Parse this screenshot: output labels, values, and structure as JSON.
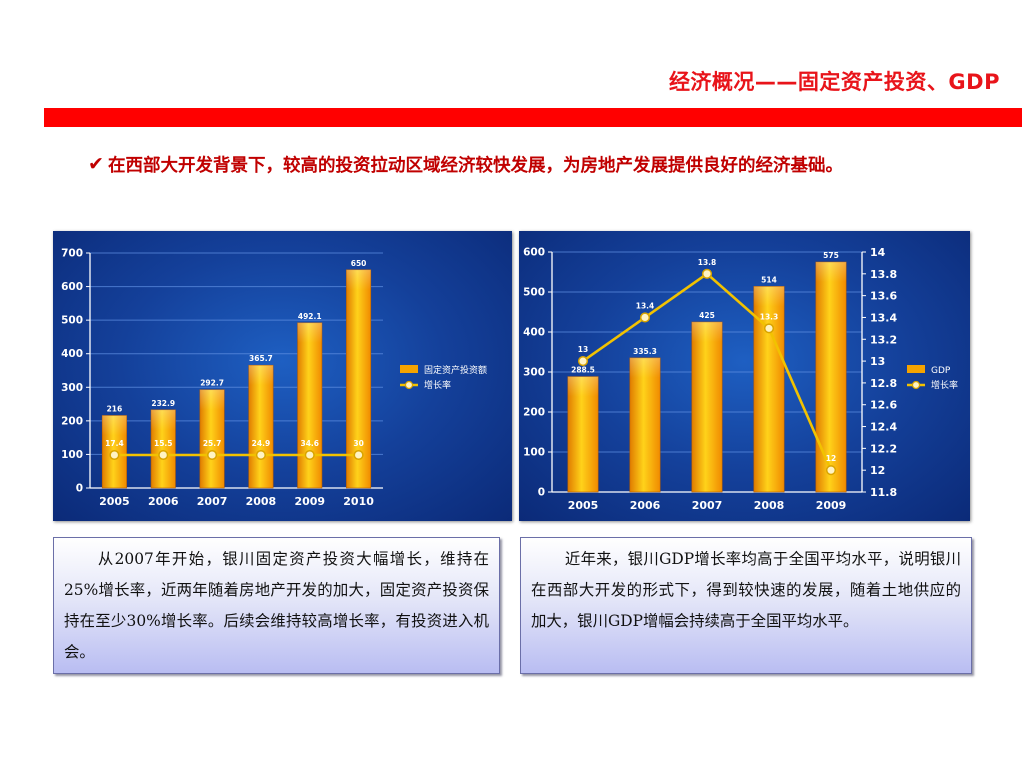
{
  "slide": {
    "title": "经济概况——固定资产投资、GDP",
    "bullet": "在西部大开发背景下，较高的投资拉动区域经济较快发展，为房地产发展提供良好的经济基础。"
  },
  "notes": {
    "left": "从2007年开始，银川固定资产投资大幅增长，维持在25%增长率，近两年随着房地产开发的加大，固定资产投资保持在至少30%增长率。后续会维持较高增长率，有投资进入机会。",
    "right": "近年来，银川GDP增长率均高于全国平均水平，说明银川在西部大开发的形式下，得到较快速的发展，随着土地供应的加大，银川GDP增幅会持续高于全国平均水平。"
  },
  "colors": {
    "title_red": "#e8141a",
    "bar_fill": "#f7a800",
    "line_color": "#f2c200",
    "panel_blue": "#14409a"
  },
  "chart_data": [
    {
      "type": "bar",
      "categories": [
        "2005",
        "2006",
        "2007",
        "2008",
        "2009",
        "2010"
      ],
      "series": [
        {
          "name": "固定资产投资额",
          "type": "bar",
          "values": [
            216,
            232.9,
            292.7,
            365.7,
            492.1,
            650
          ]
        },
        {
          "name": "增长率",
          "type": "line",
          "values": [
            17.4,
            15.5,
            25.7,
            24.9,
            34.6,
            30
          ]
        }
      ],
      "ylim": [
        0,
        700
      ],
      "yticks": [
        "0",
        "100",
        "200",
        "300",
        "400",
        "500",
        "600",
        "700"
      ],
      "legend": [
        "固定资产投资额",
        "增长率"
      ],
      "legend_position": "right",
      "grid": true
    },
    {
      "type": "bar",
      "categories": [
        "2005",
        "2006",
        "2007",
        "2008",
        "2009"
      ],
      "series": [
        {
          "name": "GDP",
          "type": "bar",
          "axis": "left",
          "values": [
            288.5,
            335.3,
            425,
            514,
            575
          ]
        },
        {
          "name": "增长率",
          "type": "line",
          "axis": "right",
          "values": [
            13,
            13.4,
            13.8,
            13.3,
            12
          ]
        }
      ],
      "ylim": [
        0,
        600
      ],
      "yticks": [
        "0",
        "100",
        "200",
        "300",
        "400",
        "500",
        "600"
      ],
      "y2lim": [
        11.8,
        14
      ],
      "y2ticks": [
        "11.8",
        "12",
        "12.2",
        "12.4",
        "12.6",
        "12.8",
        "13",
        "13.2",
        "13.4",
        "13.6",
        "13.8",
        "14"
      ],
      "legend": [
        "GDP",
        "增长率"
      ],
      "legend_position": "right",
      "grid": true
    }
  ]
}
